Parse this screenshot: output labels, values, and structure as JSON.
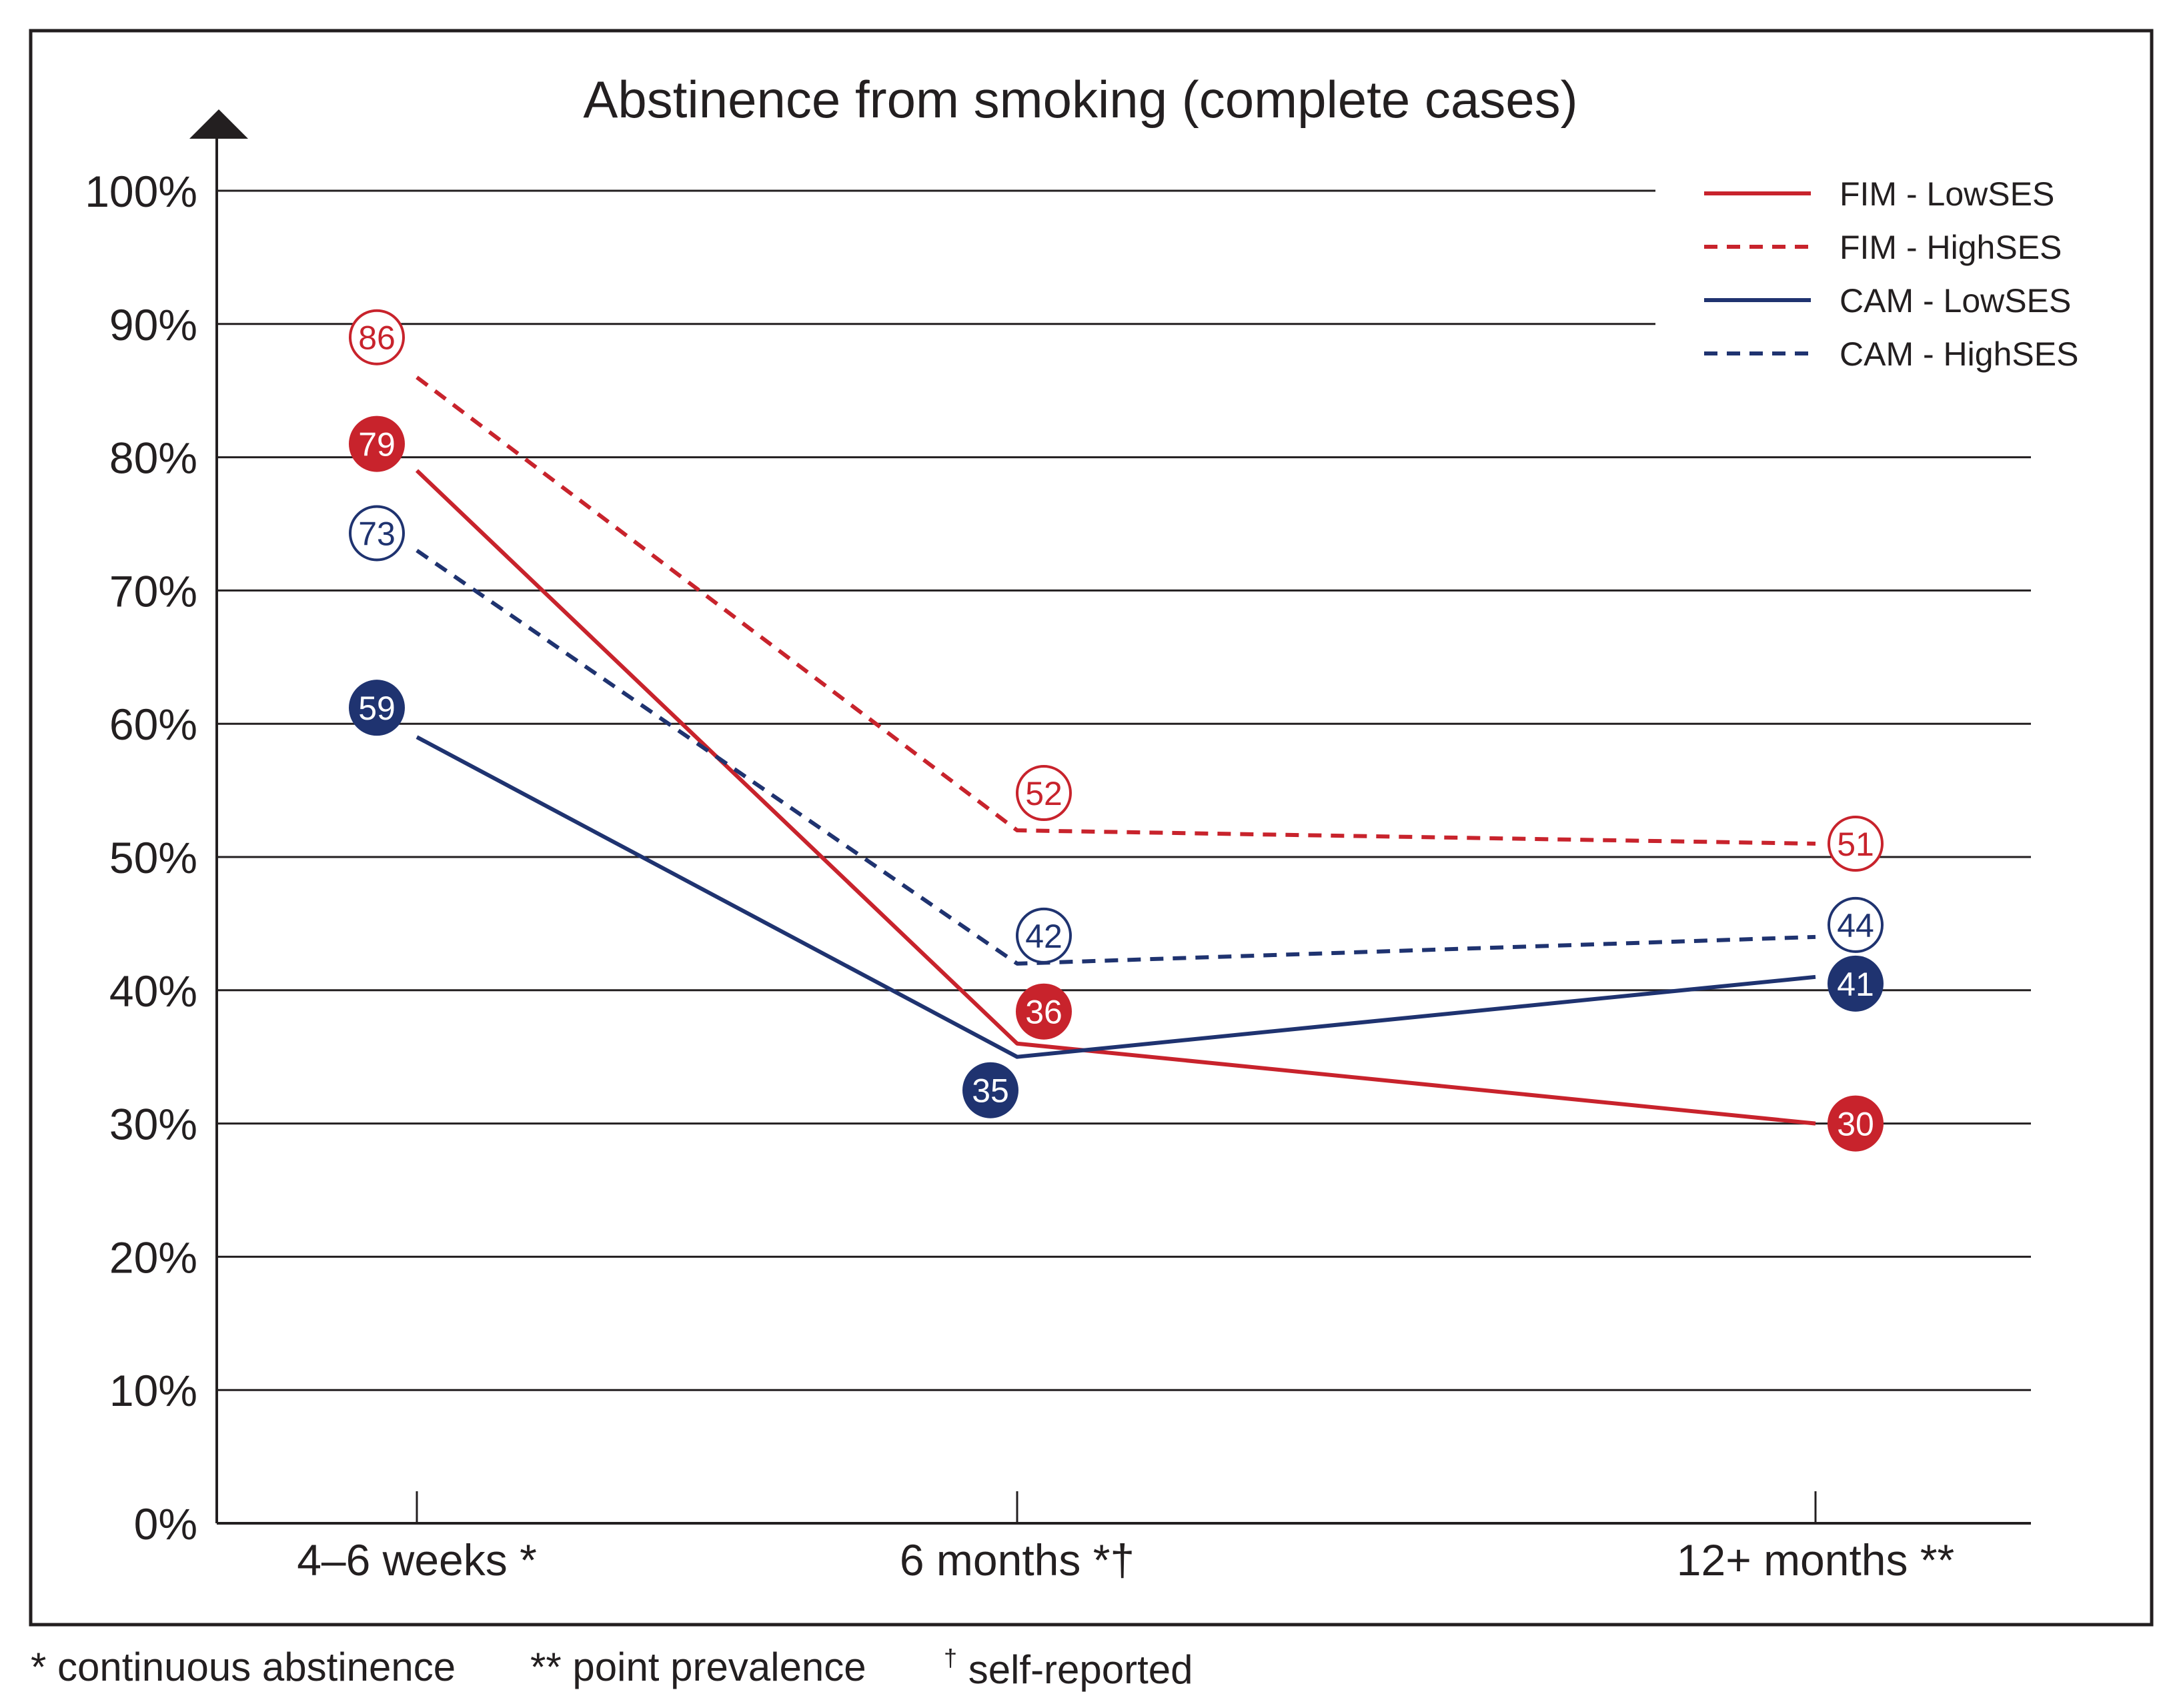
{
  "chart_data": {
    "type": "line",
    "title": "Abstinence from smoking (complete cases)",
    "categories": [
      "4–6 weeks *",
      "6 months *†",
      "12+ months **"
    ],
    "ylim": [
      0,
      100
    ],
    "yticks": [
      "0%",
      "10%",
      "20%",
      "30%",
      "40%",
      "50%",
      "60%",
      "70%",
      "80%",
      "90%",
      "100%"
    ],
    "grid": true,
    "legend_position": "top-right",
    "series": [
      {
        "name": "FIM - LowSES",
        "values": [
          79,
          36,
          30
        ],
        "labels": [
          "79",
          "36",
          "30"
        ],
        "color": "#c8232c",
        "dashed": false
      },
      {
        "name": "FIM - HighSES",
        "values": [
          86,
          52,
          51
        ],
        "labels": [
          "86",
          "52",
          "51"
        ],
        "color": "#c8232c",
        "dashed": true
      },
      {
        "name": "CAM - LowSES",
        "values": [
          59,
          35,
          41
        ],
        "labels": [
          "59",
          "35",
          "41"
        ],
        "color": "#1f3370",
        "dashed": false
      },
      {
        "name": "CAM - HighSES",
        "values": [
          73,
          42,
          44
        ],
        "labels": [
          "73",
          "42",
          "44"
        ],
        "color": "#1f3370",
        "dashed": true
      }
    ]
  },
  "footnotes": {
    "continuous": "* continuous abstinence",
    "point": "** point prevalence",
    "self_mark": "†",
    "self_text": " self-reported"
  }
}
